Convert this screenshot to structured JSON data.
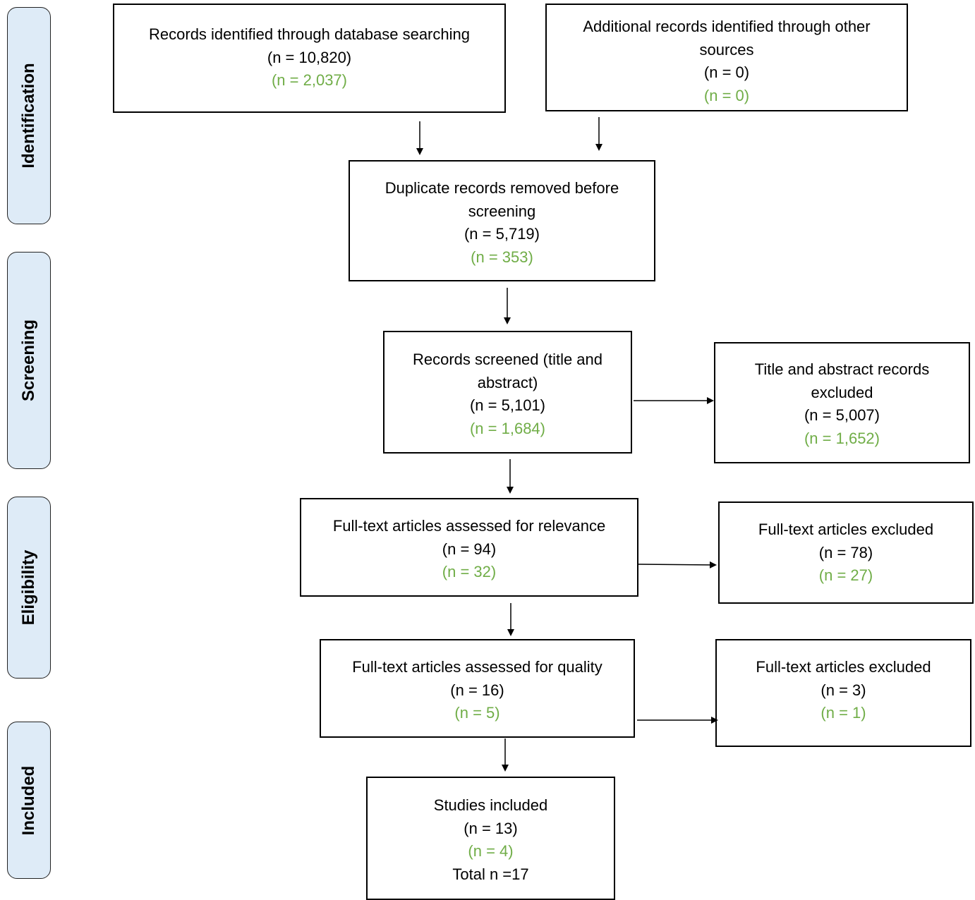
{
  "stages": {
    "identification": "Identification",
    "screening": "Screening",
    "eligibility": "Eligibility",
    "included": "Included"
  },
  "boxes": {
    "database": {
      "label": "Records identified through database searching",
      "n1": "(n = 10,820)",
      "n2": "(n = 2,037)"
    },
    "other": {
      "label": "Additional records identified through other sources",
      "n1": "(n = 0)",
      "n2": "(n = 0)"
    },
    "duplicates": {
      "label": "Duplicate records removed before screening",
      "n1": "(n = 5,719)",
      "n2": "(n = 353)"
    },
    "screened": {
      "label": "Records screened (title and abstract)",
      "n1": "(n = 5,101)",
      "n2": "(n = 1,684)"
    },
    "ta_excluded": {
      "label": "Title and abstract records excluded",
      "n1": "(n = 5,007)",
      "n2": "(n = 1,652)"
    },
    "relevance": {
      "label": "Full-text articles assessed for relevance",
      "n1": "(n = 94)",
      "n2": "(n = 32)"
    },
    "ft_excluded_1": {
      "label": "Full-text articles excluded",
      "n1": "(n = 78)",
      "n2": "(n = 27)"
    },
    "quality": {
      "label": "Full-text articles assessed for quality",
      "n1": "(n = 16)",
      "n2": "(n = 5)"
    },
    "ft_excluded_2": {
      "label": "Full-text articles excluded",
      "n1": "(n = 3)",
      "n2": "(n = 1)"
    },
    "included": {
      "label": "Studies included",
      "n1": "(n = 13)",
      "n2": "(n = 4)",
      "total": "Total n =17"
    }
  },
  "colors": {
    "secondary_count": "#70ad47",
    "stage_fill": "#deebf7"
  }
}
